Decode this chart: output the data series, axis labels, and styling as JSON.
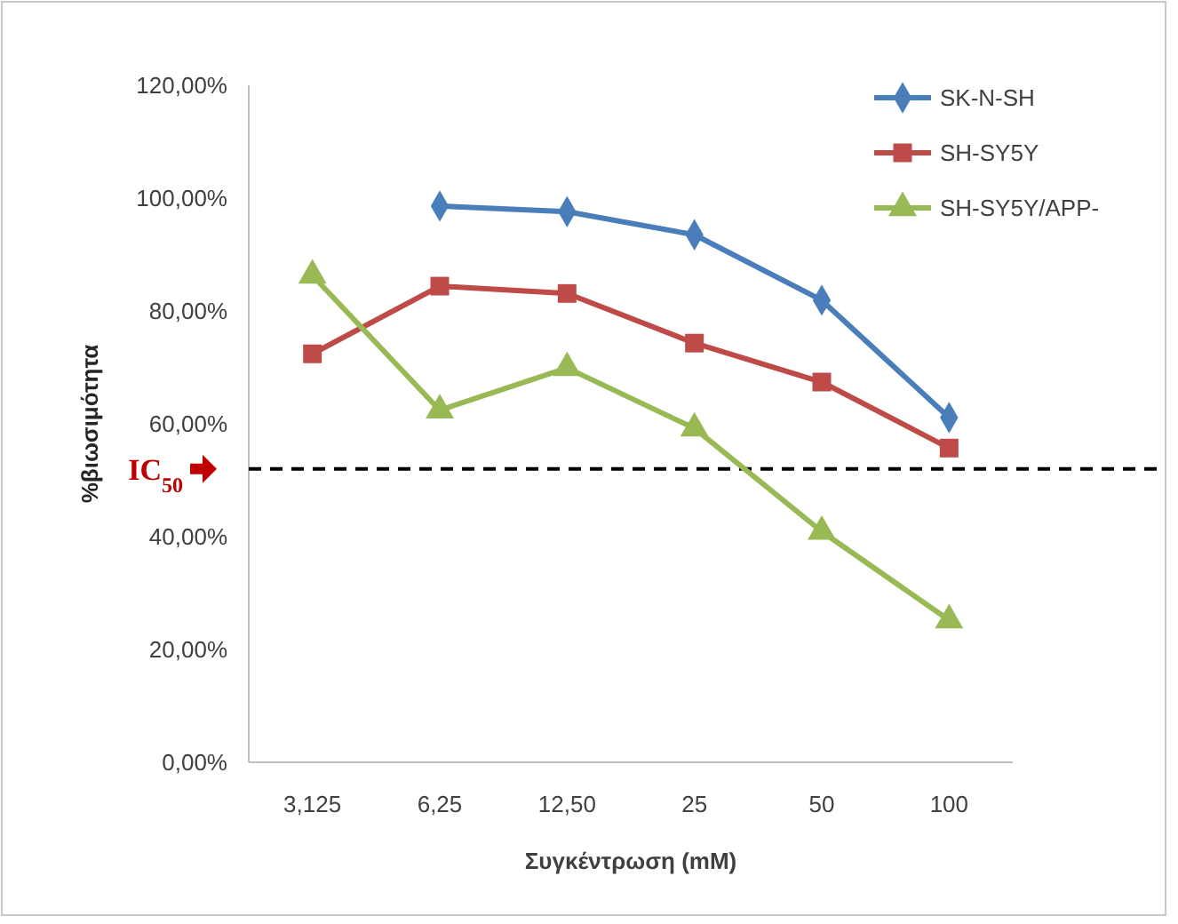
{
  "chart_data": {
    "type": "line",
    "xlabel": "Συγκέντρωση (mM)",
    "ylabel": "%βιωσιμότητα",
    "categories": [
      "3,125",
      "6,25",
      "12,50",
      "25",
      "50",
      "100"
    ],
    "series": [
      {
        "name": "SK-N-SH",
        "color": "#4a7ebb",
        "marker": "diamond",
        "values": [
          null,
          98.6,
          97.6,
          93.5,
          81.9,
          61.1
        ]
      },
      {
        "name": "SH-SY5Y",
        "color": "#be4b48",
        "marker": "square",
        "values": [
          72.4,
          84.4,
          83.1,
          74.3,
          67.4,
          55.7
        ]
      },
      {
        "name": "SH-SY5Y/APP-",
        "color": "#98b954",
        "marker": "triangle",
        "values": [
          86.3,
          62.4,
          69.9,
          59.2,
          40.9,
          25.2
        ]
      }
    ],
    "ylim": [
      0,
      120
    ],
    "yticks": [
      {
        "value": 0,
        "label": "0,00%"
      },
      {
        "value": 20,
        "label": "20,00%"
      },
      {
        "value": 40,
        "label": "40,00%"
      },
      {
        "value": 60,
        "label": "60,00%"
      },
      {
        "value": 80,
        "label": "80,00%"
      },
      {
        "value": 100,
        "label": "100,00%"
      },
      {
        "value": 120,
        "label": "120,00%"
      }
    ],
    "ref_lines": [
      {
        "axis": "y",
        "value": 52,
        "label": "IC$_{50}$",
        "color": "#000000",
        "line_style": "dashed"
      }
    ],
    "grid": false,
    "legend": "top right",
    "line_style": "solid"
  }
}
